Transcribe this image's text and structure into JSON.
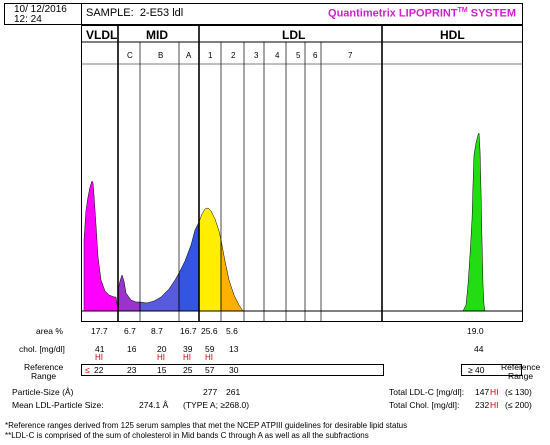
{
  "header": {
    "date": "10/ 12/2016",
    "time": "12: 24",
    "sample_label": "SAMPLE:",
    "sample_id": "2-E53 ldl",
    "system_name": "Quantimetrix LIPOPRINT",
    "system_tm": "TM",
    "system_suffix": " SYSTEM"
  },
  "groups": {
    "vldl": "VLDL",
    "mid": "MID",
    "ldl": "LDL",
    "hdl": "HDL"
  },
  "bands": [
    "C",
    "B",
    "A",
    "1",
    "2",
    "3",
    "4",
    "5",
    "6",
    "7"
  ],
  "table": {
    "area_label": "area %",
    "area_values": [
      "17.7",
      "6.7",
      "8.7",
      "16.7",
      "25.6",
      "5.6"
    ],
    "area_hdl": "19.0",
    "chol_label": "chol. [mg/dl]",
    "chol_values": [
      "41",
      "16",
      "20",
      "39",
      "59",
      "13"
    ],
    "chol_hdl": "44",
    "hi_label": "HI",
    "ref_label_1": "Reference",
    "ref_label_2": "Range",
    "ref_vldl_symbol": "≤",
    "ref_values": [
      "22",
      "23",
      "15",
      "25",
      "57",
      "30"
    ],
    "ref_hdl": "≥ 40",
    "ref_right_1": "Reference",
    "ref_right_2": "Range",
    "particle_label": "Particle-Size (Å)",
    "particle_values": [
      "277",
      "261"
    ],
    "mean_label": "Mean LDL-Particle Size:",
    "mean_value": "274.1 Å",
    "mean_type": "(TYPE A; ≥268.0)",
    "total_ldl_label": "Total LDL-C [mg/dl]:",
    "total_ldl_value": "147",
    "total_ldl_ref": "(≤ 130)",
    "total_chol_label": "Total Chol. [mg/dl]:",
    "total_chol_value": "232",
    "total_chol_ref": "(≤ 200)"
  },
  "footnotes": [
    "*Reference ranges derived from 125 serum samples that met the NCEP ATPIII guidelines for desirable lipid status",
    "**LDL-C is comprised of the sum of cholesterol in Mid bands C through A as well as all the subfractions"
  ],
  "colors": {
    "vldl": "#ff00ff",
    "midc": "#9933cc",
    "midb": "#5a5adc",
    "mida": "#3355e0",
    "ldl1": "#ffee00",
    "ldl2": "#ffb000",
    "hdl": "#22dd11",
    "hi": "#cc0000",
    "brand": "#d01fd0"
  }
}
